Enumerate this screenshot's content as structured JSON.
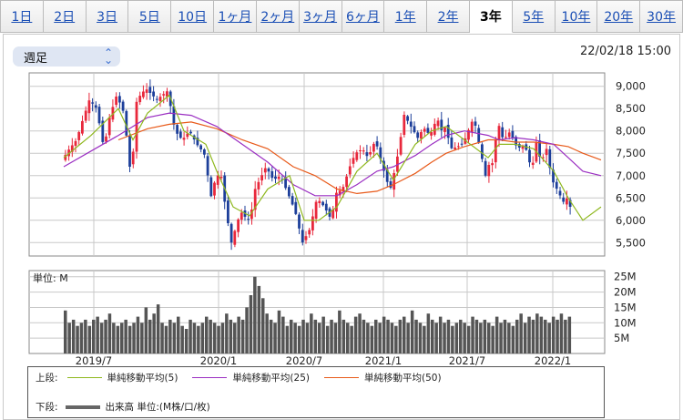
{
  "tabs": [
    {
      "label": "1日",
      "active": false
    },
    {
      "label": "2日",
      "active": false
    },
    {
      "label": "3日",
      "active": false
    },
    {
      "label": "5日",
      "active": false
    },
    {
      "label": "10日",
      "active": false
    },
    {
      "label": "1ヶ月",
      "active": false
    },
    {
      "label": "2ヶ月",
      "active": false
    },
    {
      "label": "3ヶ月",
      "active": false
    },
    {
      "label": "6ヶ月",
      "active": false
    },
    {
      "label": "1年",
      "active": false
    },
    {
      "label": "2年",
      "active": false
    },
    {
      "label": "3年",
      "active": true
    },
    {
      "label": "5年",
      "active": false
    },
    {
      "label": "10年",
      "active": false
    },
    {
      "label": "20年",
      "active": false
    },
    {
      "label": "30年",
      "active": false
    }
  ],
  "period_select": {
    "value": "週足"
  },
  "timestamp": "22/02/18 15:00",
  "chart_data": [
    {
      "type": "candlestick",
      "x_ticks": [
        "2019/7",
        "2020/1",
        "2020/7",
        "2021/1",
        "2021/7",
        "2022/1"
      ],
      "y_ticks": [
        "9,000",
        "8,500",
        "8,000",
        "7,500",
        "7,000",
        "6,500",
        "6,000",
        "5,500"
      ],
      "ylim": [
        5200,
        9300
      ],
      "colors": {
        "up": "#e8283c",
        "down": "#1d3f9a",
        "ma5": "#8fb81f",
        "ma25": "#9b2fc2",
        "ma50": "#e85a1a"
      },
      "anchors": {
        "x": [
          0,
          8,
          16,
          22,
          30,
          38,
          46,
          52,
          60,
          68,
          76,
          82,
          92,
          104,
          116,
          124,
          132,
          140,
          148,
          156,
          164,
          168,
          174,
          180,
          186,
          196,
          204,
          208,
          212,
          224,
          232,
          240,
          248,
          256,
          264,
          272,
          280,
          288,
          296,
          300,
          308,
          316,
          322,
          330,
          336,
          344,
          352,
          358,
          362,
          364,
          370,
          376,
          380,
          386,
          392,
          396,
          404,
          412,
          416,
          420,
          428,
          440,
          452,
          466,
          470,
          474,
          478,
          482,
          486,
          490,
          496,
          500,
          508,
          516,
          520,
          526,
          532,
          538,
          546,
          550,
          554,
          558,
          562,
          566,
          570,
          574,
          580,
          584,
          590
        ],
        "y": [
          7350,
          7600,
          7800,
          8200,
          8700,
          8500,
          7600,
          8300,
          8800,
          8400,
          6900,
          8700,
          8950,
          8700,
          8900,
          8000,
          7800,
          8000,
          7700,
          7500,
          6500,
          6900,
          7100,
          6200,
          5500,
          6200,
          6000,
          6200,
          6700,
          7200,
          6900,
          7000,
          6600,
          6200,
          5500,
          5800,
          6500,
          6300,
          6000,
          6600,
          6700,
          7200,
          7500,
          7600,
          7400,
          7800,
          7200,
          6800,
          6700,
          7000,
          7600,
          8400,
          8200,
          8000,
          7800,
          8100,
          7900,
          8300,
          8000,
          8100,
          7600,
          7700,
          8300,
          6900,
          7400,
          7200,
          8300,
          7900,
          7800,
          8000,
          7800,
          7600,
          7700,
          7100,
          7800,
          7300,
          7600,
          6900,
          6600,
          6400,
          6500,
          6300,
          6000,
          5700,
          6100,
          5600,
          5800,
          6300,
          6800
        ]
      },
      "ma5": {
        "x": [
          0,
          30,
          60,
          76,
          92,
          116,
          132,
          156,
          168,
          186,
          204,
          224,
          248,
          264,
          280,
          300,
          322,
          344,
          362,
          386,
          404,
          420,
          440,
          466,
          478,
          496,
          516,
          538,
          554,
          570,
          590
        ],
        "y": [
          7400,
          7900,
          8500,
          7800,
          8400,
          8800,
          8000,
          7700,
          7100,
          6300,
          6100,
          6700,
          7000,
          6000,
          6000,
          6300,
          7100,
          7500,
          6900,
          7700,
          8000,
          8100,
          7800,
          7400,
          7700,
          7700,
          7600,
          7100,
          6500,
          6000,
          6300
        ]
      },
      "ma25": {
        "x": [
          0,
          30,
          60,
          92,
          116,
          140,
          168,
          196,
          224,
          252,
          276,
          300,
          322,
          344,
          362,
          386,
          404,
          420,
          440,
          466,
          478,
          496,
          516,
          538,
          554,
          570,
          590
        ],
        "y": [
          7200,
          7550,
          7900,
          8300,
          8400,
          8350,
          8100,
          7700,
          7300,
          6800,
          6550,
          6550,
          6800,
          7100,
          7200,
          7450,
          7700,
          7900,
          8000,
          7900,
          7800,
          7850,
          7800,
          7700,
          7400,
          7100,
          7000
        ]
      },
      "ma50": {
        "x": [
          60,
          92,
          116,
          140,
          168,
          196,
          224,
          252,
          276,
          300,
          322,
          344,
          362,
          386,
          404,
          420,
          440,
          466,
          478,
          496,
          516,
          538,
          554,
          570,
          590
        ],
        "y": [
          7800,
          8050,
          8150,
          8200,
          8050,
          7800,
          7600,
          7200,
          7000,
          6700,
          6600,
          6650,
          6800,
          7050,
          7300,
          7500,
          7650,
          7800,
          7800,
          7750,
          7750,
          7700,
          7650,
          7500,
          7350
        ]
      }
    },
    {
      "type": "bar",
      "unit_label": "単位: M",
      "y_ticks": [
        "25M",
        "20M",
        "15M",
        "10M",
        "5M"
      ],
      "ylim": [
        0,
        27
      ],
      "values": [
        14,
        10,
        11,
        9,
        10,
        11,
        9,
        11,
        12,
        10,
        11,
        13,
        10,
        9,
        10,
        11,
        9,
        10,
        12,
        10,
        15,
        11,
        13,
        16,
        10,
        9,
        11,
        10,
        12,
        9,
        8,
        11,
        10,
        9,
        10,
        12,
        11,
        10,
        9,
        10,
        13,
        11,
        10,
        12,
        11,
        15,
        19,
        25,
        22,
        18,
        13,
        11,
        10,
        14,
        12,
        9,
        11,
        10,
        9,
        11,
        10,
        13,
        11,
        10,
        12,
        9,
        11,
        10,
        14,
        11,
        10,
        9,
        12,
        13,
        11,
        10,
        9,
        11,
        10,
        12,
        11,
        10,
        9,
        11,
        12,
        10,
        14,
        11,
        10,
        9,
        13,
        11,
        10,
        12,
        10,
        11,
        9,
        10,
        11,
        10,
        9,
        12,
        11,
        10,
        11,
        10,
        9,
        12,
        10,
        11,
        10,
        9,
        11,
        13,
        10,
        12,
        11,
        13,
        12,
        11,
        10,
        12,
        11,
        13,
        11,
        12
      ]
    }
  ],
  "x_tick_positions": [
    103,
    240,
    334,
    421,
    513,
    607
  ],
  "legend": {
    "upper_label": "上段:",
    "ma5_label": "単純移動平均(5)",
    "ma25_label": "単純移動平均(25)",
    "ma50_label": "単純移動平均(50)",
    "lower_label": "下段:",
    "volume_label": "出来高 単位:(M株/口/枚)"
  }
}
